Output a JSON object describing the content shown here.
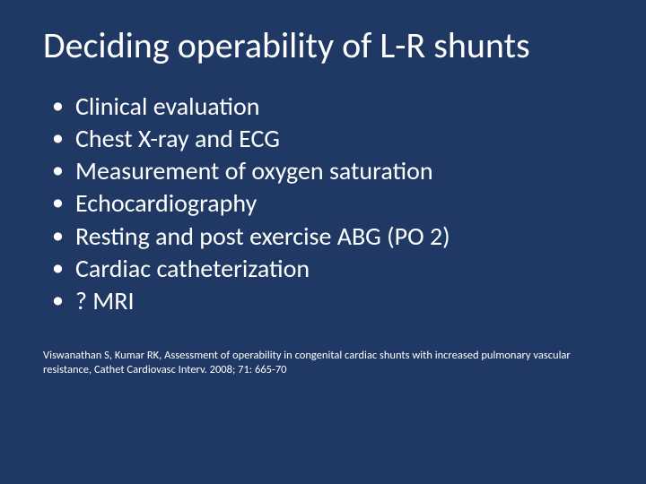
{
  "background_color": "#1f3864",
  "text_color": "#ffffff",
  "title": "Deciding operability of L-R shunts",
  "title_fontsize": 40,
  "bullet_fontsize": 28,
  "citation_fontsize": 12.5,
  "bullets": [
    "Clinical evaluation",
    "Chest X-ray and ECG",
    "Measurement of oxygen saturation",
    "Echocardiography",
    "Resting and post exercise ABG (PO 2)",
    "Cardiac catheterization",
    "? MRI"
  ],
  "citation": "Viswanathan S, Kumar RK, Assessment of operability in congenital cardiac shunts with increased pulmonary vascular resistance, Cathet Cardiovasc Interv. 2008; 71: 665-70"
}
